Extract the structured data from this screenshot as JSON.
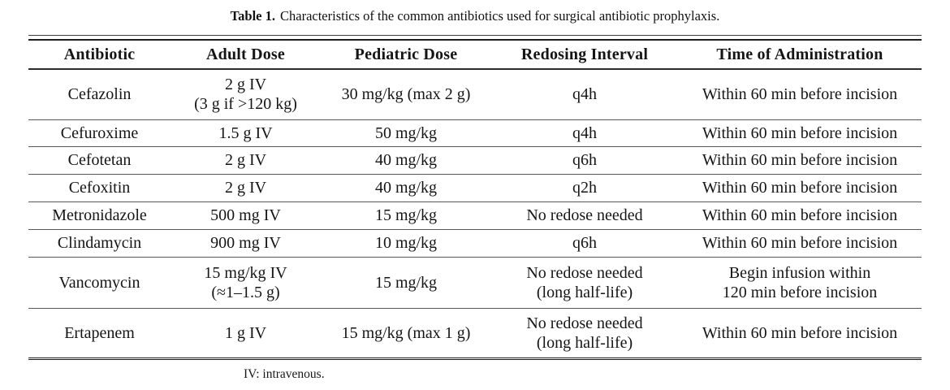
{
  "caption": {
    "label": "Table 1.",
    "text": "Characteristics of the common antibiotics used for surgical antibiotic prophylaxis."
  },
  "table": {
    "columns": [
      "Antibiotic",
      "Adult Dose",
      "Pediatric Dose",
      "Redosing Interval",
      "Time of Administration"
    ],
    "rows": [
      [
        "Cefazolin",
        "2 g IV\n(3 g if >120 kg)",
        "30 mg/kg (max 2 g)",
        "q4h",
        "Within 60 min before incision"
      ],
      [
        "Cefuroxime",
        "1.5 g IV",
        "50 mg/kg",
        "q4h",
        "Within 60 min before incision"
      ],
      [
        "Cefotetan",
        "2 g IV",
        "40 mg/kg",
        "q6h",
        "Within 60 min before incision"
      ],
      [
        "Cefoxitin",
        "2 g IV",
        "40 mg/kg",
        "q2h",
        "Within 60 min before incision"
      ],
      [
        "Metronidazole",
        "500 mg IV",
        "15 mg/kg",
        "No redose needed",
        "Within 60 min before incision"
      ],
      [
        "Clindamycin",
        "900 mg IV",
        "10 mg/kg",
        "q6h",
        "Within 60 min before incision"
      ],
      [
        "Vancomycin",
        "15 mg/kg IV\n(≈1–1.5 g)",
        "15 mg/kg",
        "No redose needed\n(long half-life)",
        "Begin infusion within\n120 min before incision"
      ],
      [
        "Ertapenem",
        "1 g IV",
        "15 mg/kg (max 1 g)",
        "No redose needed\n(long half-life)",
        "Within 60 min before incision"
      ]
    ]
  },
  "footnote": "IV: intravenous.",
  "colors": {
    "text": "#151515",
    "rule_thick": "#1d1d1d",
    "rule_thin": "#585858",
    "background": "#ffffff"
  }
}
